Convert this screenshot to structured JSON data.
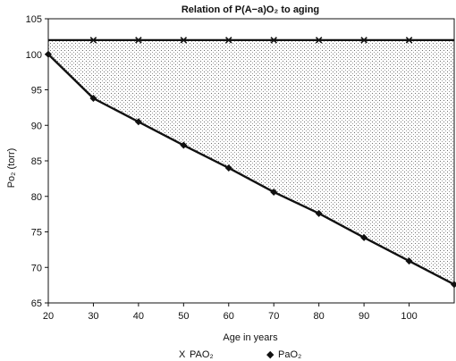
{
  "chart_data": {
    "type": "line",
    "title": "Relation of P(A−a)O₂ to aging",
    "xlabel": "Age in years",
    "ylabel": "Po₂ (torr)",
    "xlim": [
      20,
      110
    ],
    "ylim": [
      65,
      105
    ],
    "x_ticks": [
      20,
      30,
      40,
      50,
      60,
      70,
      80,
      90,
      100
    ],
    "y_ticks": [
      65,
      70,
      75,
      80,
      85,
      90,
      95,
      100,
      105
    ],
    "grid": false,
    "shaded_region_between_series": true,
    "legend_position": "bottom",
    "series": [
      {
        "name": "PAO₂",
        "marker": "x",
        "legend_marker": "X",
        "x": [
          20,
          30,
          40,
          50,
          60,
          70,
          80,
          90,
          100,
          110
        ],
        "y": [
          102,
          102,
          102,
          102,
          102,
          102,
          102,
          102,
          102,
          102
        ],
        "marked_x": [
          30,
          40,
          50,
          60,
          70,
          80,
          90,
          100
        ]
      },
      {
        "name": "PaO₂",
        "marker": "diamond",
        "legend_marker": "◆",
        "x": [
          20,
          30,
          40,
          50,
          60,
          70,
          80,
          90,
          100,
          110
        ],
        "y": [
          100,
          93.8,
          90.5,
          87.2,
          84.0,
          80.6,
          77.6,
          74.2,
          70.9,
          67.6
        ],
        "marked_x": [
          20,
          30,
          40,
          50,
          60,
          70,
          80,
          90,
          100,
          110
        ]
      }
    ]
  }
}
